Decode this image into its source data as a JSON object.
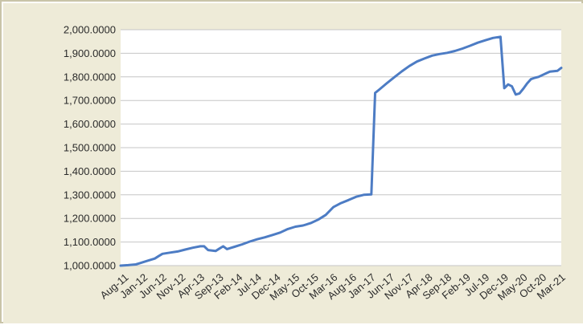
{
  "colors": {
    "chart_area_background": "#eeebd8",
    "plot_background": "#ffffff",
    "gridline": "#c6c6c6",
    "line": "#4d7cc4",
    "frame_border": "#c9c4a8"
  },
  "chart_data": {
    "type": "line",
    "title": "",
    "xlabel": "",
    "ylabel": "",
    "ylim": [
      1000,
      2000
    ],
    "y_ticks": [
      "1,000.0000",
      "1,100.0000",
      "1,200.0000",
      "1,300.0000",
      "1,400.0000",
      "1,500.0000",
      "1,600.0000",
      "1,700.0000",
      "1,800.0000",
      "1,900.0000",
      "2,000.0000"
    ],
    "x_ticks": [
      "Aug-11",
      "Jan-12",
      "Jun-12",
      "Nov-12",
      "Apr-13",
      "Sep-13",
      "Feb-14",
      "Jul-14",
      "Dec-14",
      "May-15",
      "Oct-15",
      "Mar-16",
      "Aug-16",
      "Jan-17",
      "Jun-17",
      "Nov-17",
      "Apr-18",
      "Sep-18",
      "Feb-19",
      "Jul-19",
      "Dec-19",
      "May-20",
      "Oct-20",
      "Mar-21"
    ],
    "x_range": [
      "2011-08",
      "2021-04"
    ],
    "grid": true,
    "legend": "none",
    "series": [
      {
        "x": [
          "2011-08",
          "2011-10",
          "2011-12",
          "2012-01",
          "2012-03",
          "2012-05",
          "2012-06",
          "2012-07",
          "2012-09",
          "2012-11",
          "2013-01",
          "2013-03",
          "2013-05",
          "2013-06",
          "2013-07",
          "2013-09",
          "2013-10",
          "2013-11",
          "2013-12",
          "2014-01",
          "2014-02",
          "2014-04",
          "2014-06",
          "2014-08",
          "2014-10",
          "2014-12",
          "2015-02",
          "2015-04",
          "2015-06",
          "2015-08",
          "2015-10",
          "2015-12",
          "2016-02",
          "2016-04",
          "2016-06",
          "2016-08",
          "2016-10",
          "2016-12",
          "2017-02",
          "2017-03",
          "2017-04",
          "2017-06",
          "2017-08",
          "2017-10",
          "2017-12",
          "2018-02",
          "2018-04",
          "2018-06",
          "2018-08",
          "2018-10",
          "2018-12",
          "2019-02",
          "2019-04",
          "2019-06",
          "2019-08",
          "2019-10",
          "2019-12",
          "2020-01",
          "2020-02",
          "2020-03",
          "2020-04",
          "2020-05",
          "2020-06",
          "2020-07",
          "2020-08",
          "2020-09",
          "2020-10",
          "2020-12",
          "2021-01",
          "2021-03",
          "2021-04"
        ],
        "values": [
          1000,
          1002,
          1005,
          1010,
          1020,
          1030,
          1040,
          1050,
          1055,
          1060,
          1068,
          1076,
          1082,
          1082,
          1066,
          1062,
          1072,
          1082,
          1070,
          1075,
          1080,
          1090,
          1102,
          1112,
          1120,
          1130,
          1140,
          1155,
          1165,
          1170,
          1180,
          1195,
          1215,
          1248,
          1265,
          1278,
          1292,
          1300,
          1302,
          1732,
          1745,
          1772,
          1798,
          1823,
          1846,
          1865,
          1878,
          1890,
          1897,
          1902,
          1910,
          1920,
          1932,
          1945,
          1955,
          1965,
          1970,
          1752,
          1768,
          1760,
          1725,
          1730,
          1750,
          1772,
          1790,
          1796,
          1800,
          1815,
          1822,
          1826,
          1838
        ]
      }
    ]
  }
}
